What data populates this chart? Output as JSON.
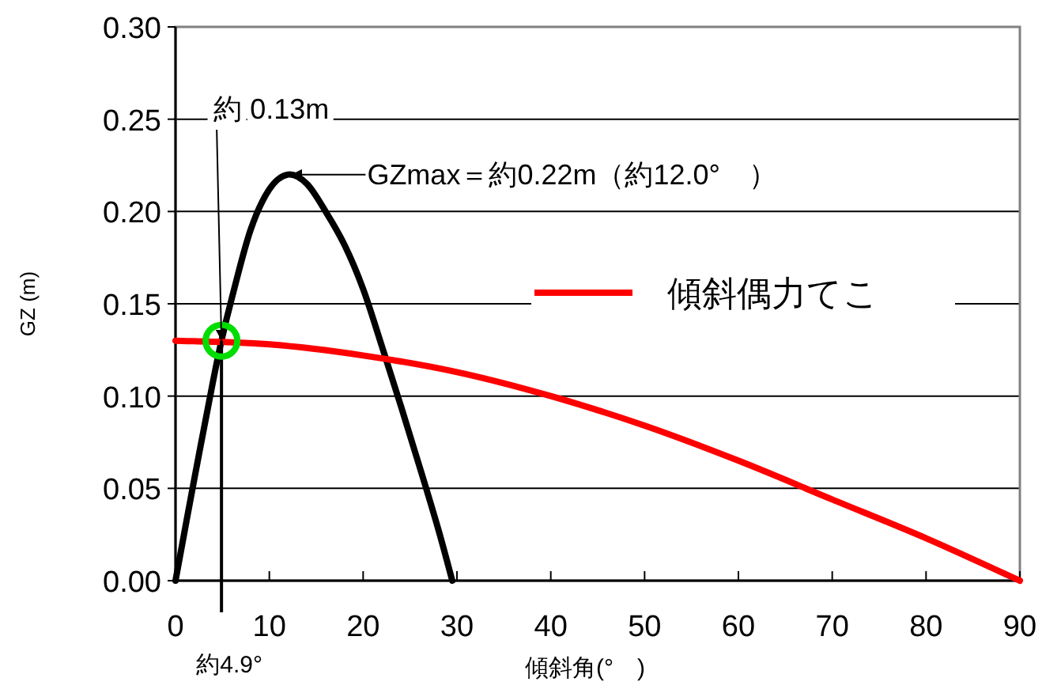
{
  "chart_data": {
    "type": "line",
    "xlabel": "傾斜角(°　)",
    "ylabel": "GZ (m)",
    "xlim": [
      0,
      90
    ],
    "ylim": [
      0,
      0.3
    ],
    "xticks": [
      0,
      10,
      20,
      30,
      40,
      50,
      60,
      70,
      80,
      90
    ],
    "yticks": [
      {
        "value": 0,
        "label": "0.00"
      },
      {
        "value": 0.05,
        "label": "0.05"
      },
      {
        "value": 0.1,
        "label": "0.10"
      },
      {
        "value": 0.15,
        "label": "0.15"
      },
      {
        "value": 0.2,
        "label": "0.20"
      },
      {
        "value": 0.25,
        "label": "0.25"
      },
      {
        "value": 0.3,
        "label": "0.30"
      }
    ],
    "grid": "y",
    "legend": "right",
    "line_style": "solid",
    "series": [
      {
        "color": "#000000",
        "x": [
          0,
          2,
          4,
          4.9,
          6,
          8,
          10,
          12,
          14,
          16,
          18,
          20,
          22,
          24,
          26,
          28,
          29.5
        ],
        "values": [
          0,
          0.055,
          0.108,
          0.13,
          0.153,
          0.19,
          0.212,
          0.22,
          0.215,
          0.2,
          0.182,
          0.158,
          0.127,
          0.095,
          0.062,
          0.028,
          0
        ]
      },
      {
        "name": "傾斜偶力てこ",
        "color": "#ff0000",
        "x": [
          0,
          10,
          20,
          30,
          40,
          50,
          60,
          70,
          80,
          90
        ],
        "values": [
          0.13,
          0.128,
          0.122,
          0.113,
          0.1,
          0.084,
          0.065,
          0.044,
          0.023,
          0
        ]
      },
      {
        "type": "scatter",
        "marker": "circle",
        "color": "#00dd00",
        "x": [
          4.9
        ],
        "values": [
          0.13
        ]
      }
    ],
    "ref_lines": [
      {
        "axis": "x",
        "value": 4.9,
        "label": "約4.9°",
        "color": "#000000"
      }
    ],
    "annotations": [
      {
        "text": "約 0.13m",
        "x": 4.9,
        "y": 0.13
      },
      {
        "text": "GZmax＝約0.22m（約12.0°　）",
        "x": 12,
        "y": 0.22
      }
    ]
  }
}
